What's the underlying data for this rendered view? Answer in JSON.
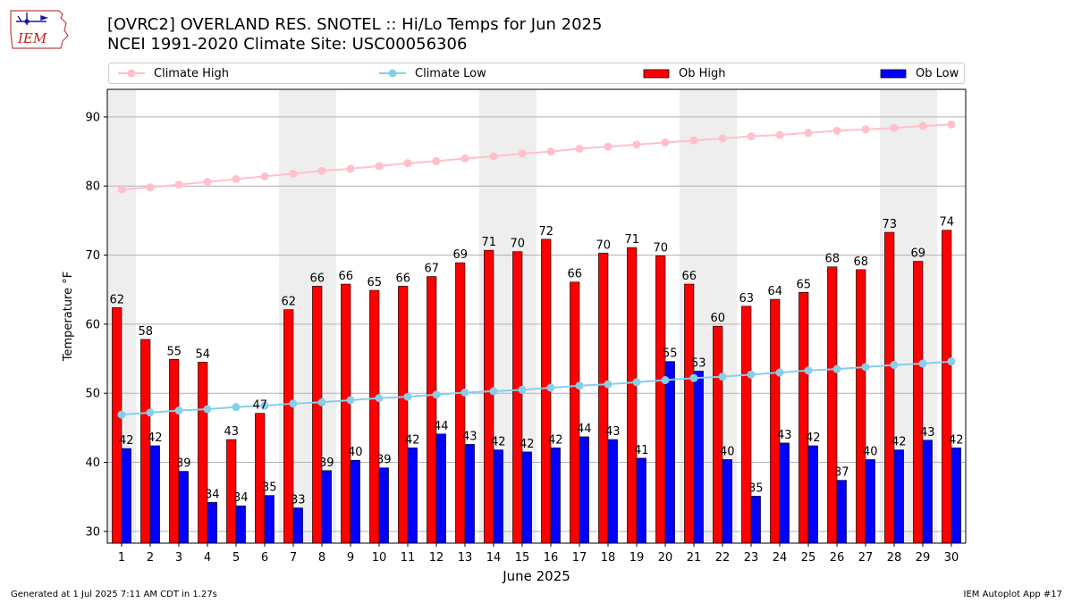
{
  "header": {
    "logo_text": "IEM",
    "title_line1": "[OVRC2] OVERLAND RES. SNOTEL :: Hi/Lo Temps for Jun 2025",
    "title_line2": "NCEI 1991-2020 Climate Site: USC00056306"
  },
  "legend": {
    "climate_high": "Climate High",
    "climate_low": "Climate Low",
    "ob_high": "Ob High",
    "ob_low": "Ob Low"
  },
  "footer": {
    "left": "Generated at 1 Jul 2025 7:11 AM CDT in 1.27s",
    "right": "IEM Autoplot App #17"
  },
  "colors": {
    "climate_high": "#ffc0cb",
    "climate_low": "#87ceeb",
    "ob_high": "#ff0000",
    "ob_low": "#0000ff",
    "weekend_shade": "#eeeeee",
    "grid": "#b0b0b0"
  },
  "chart_data": {
    "type": "bar",
    "xlabel": "June 2025",
    "ylabel": "Temperature °F",
    "ylim": [
      28.3,
      94
    ],
    "yticks": [
      30,
      40,
      50,
      60,
      70,
      80,
      90
    ],
    "grid": "horizontal",
    "legend_position": "top",
    "categories": [
      "1",
      "2",
      "3",
      "4",
      "5",
      "6",
      "7",
      "8",
      "9",
      "10",
      "11",
      "12",
      "13",
      "14",
      "15",
      "16",
      "17",
      "18",
      "19",
      "20",
      "21",
      "22",
      "23",
      "24",
      "25",
      "26",
      "27",
      "28",
      "29",
      "30"
    ],
    "shaded_days": [
      1,
      7,
      8,
      14,
      15,
      21,
      22,
      28,
      29
    ],
    "series": [
      {
        "name": "Ob High",
        "kind": "bar",
        "values": [
          62.4,
          57.8,
          54.9,
          54.5,
          43.3,
          47.1,
          62.1,
          65.5,
          65.8,
          64.9,
          65.5,
          66.9,
          68.9,
          70.7,
          70.5,
          72.3,
          66.1,
          70.3,
          71.1,
          69.9,
          65.8,
          59.7,
          62.6,
          63.6,
          64.6,
          68.3,
          67.9,
          73.3,
          69.1,
          73.6
        ],
        "labels": [
          "62",
          "58",
          "55",
          "54",
          "43",
          "47",
          "62",
          "66",
          "66",
          "65",
          "66",
          "67",
          "69",
          "71",
          "70",
          "72",
          "66",
          "70",
          "71",
          "70",
          "66",
          "60",
          "63",
          "64",
          "65",
          "68",
          "68",
          "73",
          "69",
          "74"
        ]
      },
      {
        "name": "Ob Low",
        "kind": "bar",
        "values": [
          42.0,
          42.4,
          38.7,
          34.2,
          33.7,
          35.2,
          33.4,
          38.8,
          40.3,
          39.2,
          42.1,
          44.1,
          42.6,
          41.8,
          41.5,
          42.1,
          43.7,
          43.3,
          40.6,
          54.6,
          53.2,
          40.4,
          35.1,
          42.8,
          42.4,
          37.4,
          40.4,
          41.8,
          43.2,
          42.1
        ],
        "labels": [
          "42",
          "42",
          "39",
          "34",
          "34",
          "35",
          "33",
          "39",
          "40",
          "39",
          "42",
          "44",
          "43",
          "42",
          "42",
          "42",
          "44",
          "43",
          "41",
          "55",
          "53",
          "40",
          "35",
          "43",
          "42",
          "37",
          "40",
          "42",
          "43",
          "42"
        ]
      },
      {
        "name": "Climate High",
        "kind": "line",
        "values": [
          79.5,
          79.8,
          80.2,
          80.6,
          81.0,
          81.4,
          81.8,
          82.2,
          82.5,
          82.9,
          83.3,
          83.6,
          84.0,
          84.3,
          84.7,
          85.0,
          85.4,
          85.7,
          86.0,
          86.3,
          86.6,
          86.9,
          87.2,
          87.4,
          87.7,
          88.0,
          88.2,
          88.4,
          88.7,
          88.9
        ]
      },
      {
        "name": "Climate Low",
        "kind": "line",
        "values": [
          46.9,
          47.2,
          47.5,
          47.7,
          48.0,
          48.2,
          48.5,
          48.7,
          49.0,
          49.3,
          49.5,
          49.8,
          50.1,
          50.3,
          50.5,
          50.8,
          51.1,
          51.3,
          51.6,
          51.9,
          52.2,
          52.4,
          52.7,
          53.0,
          53.3,
          53.5,
          53.8,
          54.1,
          54.3,
          54.6
        ]
      }
    ]
  }
}
